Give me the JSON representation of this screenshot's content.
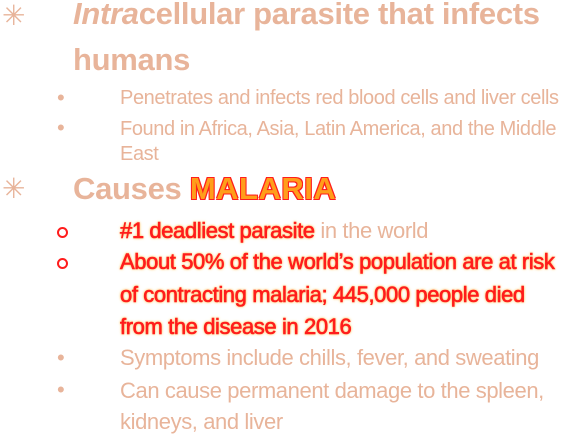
{
  "colors": {
    "text": "#e8b49a",
    "red": "#ff1c1c",
    "orange": "#ff9e1a"
  },
  "heading1": {
    "italic": "Intra",
    "rest": "cellular parasite that infects",
    "line2": "humans"
  },
  "sub1": [
    {
      "text": "Penetrates and infects red blood cells and liver cells"
    },
    {
      "line1": "Found in Africa, Asia, Latin America, and the Middle",
      "line2": "East"
    }
  ],
  "heading2": {
    "prefix": "Causes",
    "highlight": "MALARIA"
  },
  "sub2": {
    "item1": {
      "highlight": "#1 deadliest parasite",
      "rest": "in the world"
    },
    "item2": {
      "line1": "About 50% of the world’s population are at risk",
      "line2": "of contracting malaria; 445,000 people died",
      "line3": "from the disease in 2016"
    },
    "item3": {
      "text": "Symptoms include chills, fever, and sweating"
    },
    "item4": {
      "line1": "Can cause permanent damage to the spleen,",
      "line2": "kidneys, and liver"
    }
  }
}
